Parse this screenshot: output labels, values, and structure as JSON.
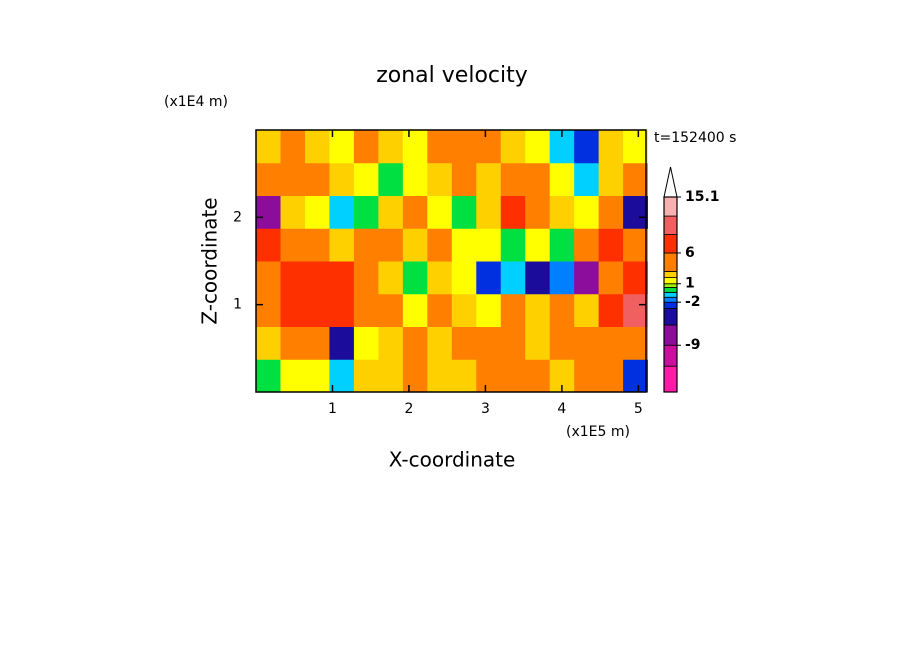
{
  "chart_data": {
    "type": "contour",
    "title": "zonal velocity",
    "x_label": "X-coordinate",
    "y_label": "Z-coordinate",
    "x_unit": "(x1E5 m)",
    "y_unit": "(x1E4 m)",
    "time_label": "t=152400 s",
    "xlim": [
      0,
      5.1
    ],
    "ylim": [
      0,
      3
    ],
    "xticks": [
      1,
      2,
      3,
      4,
      5
    ],
    "yticks": [
      1,
      2
    ],
    "x": [
      0.16,
      0.48,
      0.8,
      1.12,
      1.44,
      1.76,
      2.08,
      2.4,
      2.72,
      3.04,
      3.36,
      3.68,
      4.0,
      4.32,
      4.64,
      4.96
    ],
    "y": [
      0.1875,
      0.5625,
      0.9375,
      1.3125,
      1.6875,
      2.0625,
      2.4375,
      2.8125
    ],
    "values": [
      [
        0,
        1,
        1,
        -1,
        2,
        2,
        3,
        2,
        2,
        3,
        4,
        3,
        2,
        3,
        4,
        -3
      ],
      [
        2,
        3,
        4,
        -4,
        1,
        2,
        3,
        2,
        4,
        3,
        5,
        2,
        3,
        4,
        5,
        3
      ],
      [
        4,
        6,
        7,
        6,
        4,
        3,
        1,
        3,
        2,
        1,
        3,
        2,
        4,
        2,
        6,
        9
      ],
      [
        5,
        7,
        7,
        6,
        3,
        2,
        0,
        2,
        1,
        -3,
        -1,
        -4,
        -2,
        -6,
        3,
        6
      ],
      [
        6,
        4,
        3,
        2,
        3,
        4,
        2,
        3,
        1,
        1,
        0,
        1,
        0,
        3,
        6,
        4
      ],
      [
        -6,
        2,
        1,
        -1,
        0,
        2,
        3,
        1,
        0,
        2,
        6,
        4,
        2,
        1,
        4,
        -5
      ],
      [
        3,
        5,
        4,
        2,
        1,
        0,
        1,
        2,
        3,
        2,
        4,
        3,
        1,
        -1,
        2,
        3
      ],
      [
        2,
        4,
        2,
        1,
        3,
        2,
        1,
        4,
        5,
        3,
        2,
        1,
        -1,
        -3,
        2,
        1
      ]
    ],
    "levels": [
      -16.6,
      -12.4,
      -9,
      -5.7,
      -3,
      -2,
      -1.2,
      -0.4,
      0.4,
      1,
      2,
      3,
      6,
      9,
      12,
      15.1
    ],
    "colors": [
      "#ff1aa8",
      "#c8109e",
      "#8c0c9c",
      "#1c0c9c",
      "#0030e0",
      "#0080ff",
      "#00d0ff",
      "#00e040",
      "#a0f000",
      "#ffff00",
      "#ffd000",
      "#ff8000",
      "#ff3000",
      "#f06060",
      "#f8b0b0"
    ],
    "colorbar_ticks": [
      15.1,
      6,
      1,
      -2,
      -9
    ]
  }
}
